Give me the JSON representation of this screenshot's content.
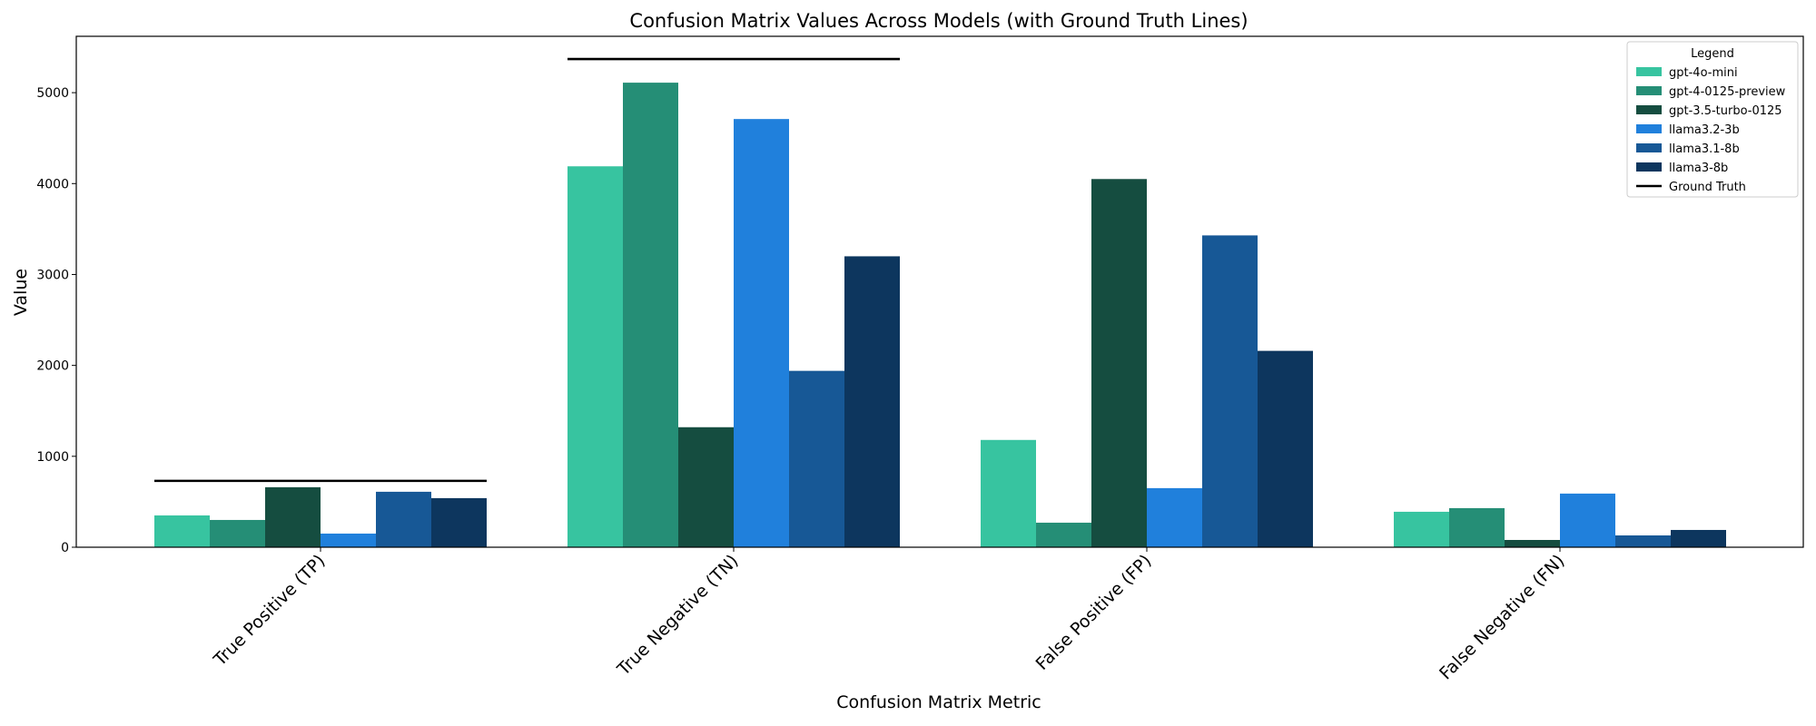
{
  "chart_data": {
    "type": "bar",
    "title": "Confusion Matrix Values Across Models (with Ground Truth Lines)",
    "xlabel": "Confusion Matrix Metric",
    "ylabel": "Value",
    "categories": [
      "True Positive (TP)",
      "True Negative (TN)",
      "False Positive (FP)",
      "False Negative (FN)"
    ],
    "ylim": [
      0,
      5620
    ],
    "yticks": [
      0,
      1000,
      2000,
      3000,
      4000,
      5000
    ],
    "grid": false,
    "legend": {
      "title": "Legend",
      "position": "top-right",
      "ground_truth_label": "Ground Truth"
    },
    "series": [
      {
        "name": "gpt-4o-mini",
        "color": "#37c4a0",
        "values": [
          350,
          4190,
          1180,
          390
        ]
      },
      {
        "name": "gpt-4-0125-preview",
        "color": "#258e76",
        "values": [
          300,
          5110,
          270,
          430
        ]
      },
      {
        "name": "gpt-3.5-turbo-0125",
        "color": "#154d40",
        "values": [
          660,
          1320,
          4050,
          80
        ]
      },
      {
        "name": "llama3.2-3b",
        "color": "#2080dc",
        "values": [
          150,
          4710,
          650,
          590
        ]
      },
      {
        "name": "llama3.1-8b",
        "color": "#175896",
        "values": [
          610,
          1940,
          3430,
          130
        ]
      },
      {
        "name": "llama3-8b",
        "color": "#0d365e",
        "values": [
          540,
          3200,
          2160,
          190
        ]
      }
    ],
    "ground_truth": {
      "name": "Ground Truth",
      "color": "#000000",
      "values": [
        730,
        5370,
        null,
        null
      ]
    }
  }
}
